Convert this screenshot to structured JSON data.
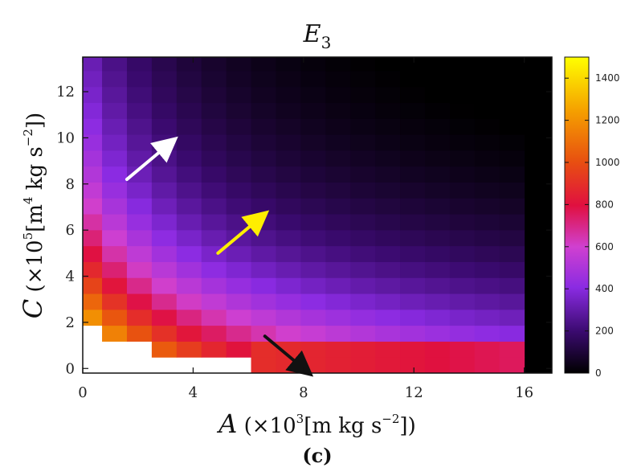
{
  "chart_data": {
    "type": "heatmap",
    "title": "E",
    "title_subscript": "3",
    "panel_label": "(c)",
    "xlabel": {
      "var": "A",
      "prefix": " (×10",
      "exp": "3",
      "unit": "[m kg s",
      "unit_exp": "−2",
      "suffix": "])"
    },
    "ylabel": {
      "var": "C",
      "prefix": " (×10",
      "exp": "5",
      "unit": "[m",
      "unit_exp1": "4",
      "unit_mid": " kg s",
      "unit_exp2": "−2",
      "suffix": "])"
    },
    "xlim": [
      0,
      17
    ],
    "ylim": [
      -0.2,
      13.5
    ],
    "x_ticks": [
      0,
      4,
      8,
      12,
      16
    ],
    "x_tick_labels": [
      "0",
      "4",
      "8",
      "12",
      "16"
    ],
    "y_ticks": [
      0,
      2,
      4,
      6,
      8,
      10,
      12
    ],
    "y_tick_labels": [
      "0",
      "2",
      "4",
      "6",
      "8",
      "10",
      "12"
    ],
    "colorbar": {
      "min": 0,
      "max": 1500,
      "ticks": [
        0,
        200,
        400,
        600,
        800,
        1000,
        1200,
        1400
      ],
      "tick_labels": [
        "0",
        "200",
        "400",
        "600",
        "800",
        "1000",
        "1200",
        "1400"
      ]
    },
    "grid": {
      "x_start": 0.25,
      "x_step": 0.9,
      "y_start": -0.2,
      "y_step": 0.69,
      "n_cols": 18,
      "n_rows": 20
    },
    "arrows": [
      {
        "color": "#ffffff",
        "from": [
          1.6,
          8.2
        ],
        "to": [
          3.1,
          9.7
        ]
      },
      {
        "color": "#ffee00",
        "from": [
          4.9,
          5.0
        ],
        "to": [
          6.4,
          6.5
        ]
      },
      {
        "color": "#111111",
        "from": [
          6.6,
          1.4
        ],
        "to": [
          8.0,
          0.0
        ]
      }
    ]
  }
}
